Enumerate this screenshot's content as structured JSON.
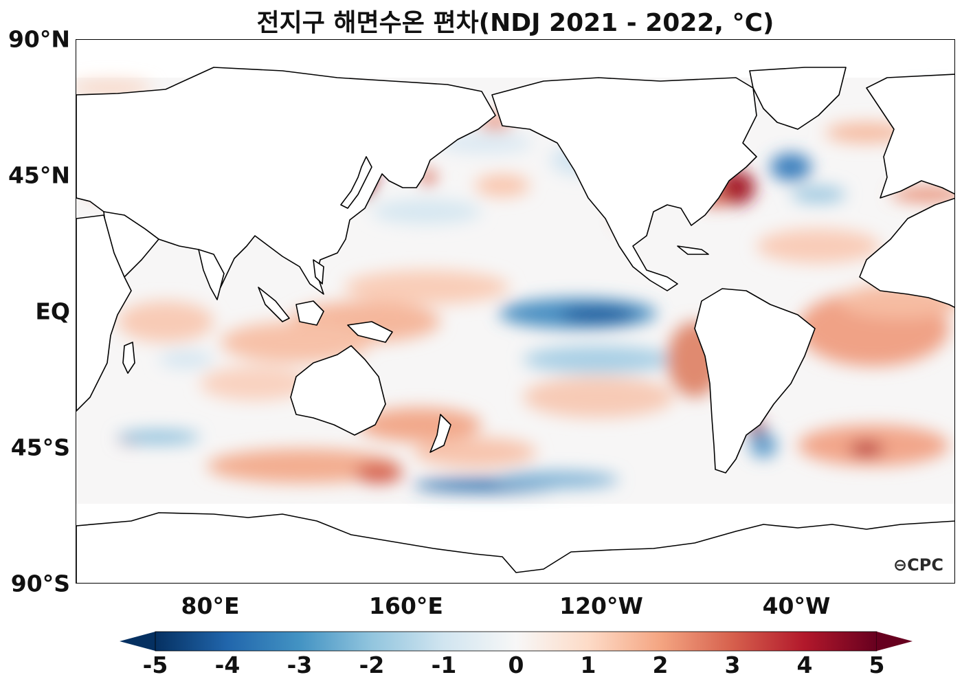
{
  "title": "전지구 해면수온 편차(NDJ 2021 - 2022, °C)",
  "lat_labels": [
    "90°N",
    "45°N",
    "EQ",
    "45°S",
    "90°S"
  ],
  "lon_labels": [
    "80°E",
    "160°E",
    "120°W",
    "40°W"
  ],
  "colorbar": {
    "ticks": [
      "-5",
      "-4",
      "-3",
      "-2",
      "-1",
      "0",
      "1",
      "2",
      "3",
      "4",
      "5"
    ],
    "colormap": "RdBu_r",
    "colors": [
      "#053061",
      "#2166ac",
      "#4393c3",
      "#92c5de",
      "#d1e5f0",
      "#f7f7f7",
      "#fddbc7",
      "#f4a582",
      "#d6604d",
      "#b2182b",
      "#67001f"
    ],
    "extend": "both"
  },
  "logo": "CPC",
  "colors": {
    "land": "#ffffff",
    "coast": "#000000",
    "neutral_ocean": "#f7f6f6"
  }
}
